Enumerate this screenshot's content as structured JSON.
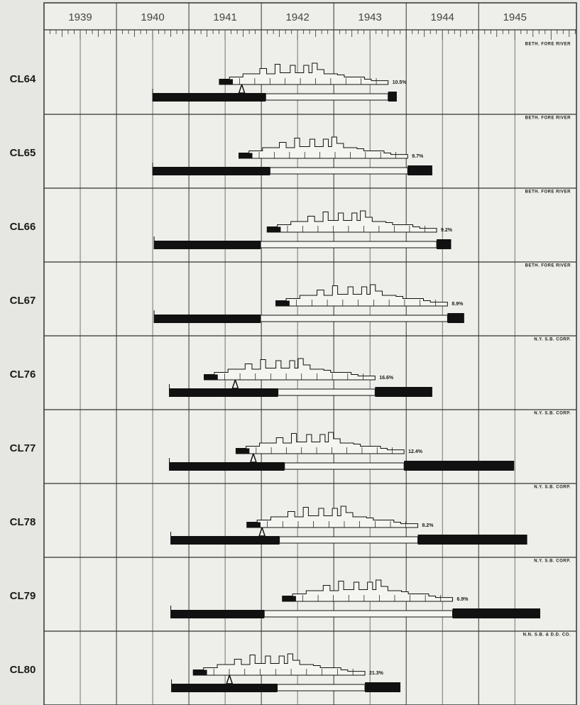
{
  "chart_data": {
    "type": "timeline",
    "xlim": [
      1939,
      1946.35
    ],
    "xticks": [
      1939,
      1940,
      1941,
      1942,
      1943,
      1944,
      1945
    ],
    "rows": [
      {
        "name": "CL64",
        "builder": "BETH. FORE RIVER",
        "label": "10.5%",
        "hull_start": 1941.42,
        "segments": [
          1940.5,
          1942.06,
          1943.75,
          1943.87
        ],
        "marker": 1941.73
      },
      {
        "name": "CL65",
        "builder": "BETH. FORE RIVER",
        "label": "9.7%",
        "hull_start": 1941.69,
        "segments": [
          1940.5,
          1942.12,
          1944.02,
          1944.36
        ]
      },
      {
        "name": "CL66",
        "builder": "BETH. FORE RIVER",
        "label": "9.2%",
        "hull_start": 1942.08,
        "segments": [
          1940.52,
          1941.99,
          1944.42,
          1944.62
        ]
      },
      {
        "name": "CL67",
        "builder": "BETH. FORE RIVER",
        "label": "8.9%",
        "hull_start": 1942.2,
        "segments": [
          1940.52,
          1941.99,
          1944.57,
          1944.8
        ]
      },
      {
        "name": "CL76",
        "builder": "N.Y. S.B. CORP.",
        "label": "16.6%",
        "hull_start": 1941.21,
        "segments": [
          1940.73,
          1942.23,
          1943.57,
          1944.36
        ],
        "marker": 1941.64
      },
      {
        "name": "CL77",
        "builder": "N.Y. S.B. CORP.",
        "label": "12.4%",
        "hull_start": 1941.65,
        "segments": [
          1940.73,
          1942.32,
          1943.97,
          1945.49
        ],
        "marker": 1941.89
      },
      {
        "name": "CL78",
        "builder": "N.Y. S.B. CORP.",
        "label": "8.2%",
        "hull_start": 1941.8,
        "segments": [
          1940.75,
          1942.25,
          1944.16,
          1945.67
        ],
        "marker": 1942.01
      },
      {
        "name": "CL79",
        "builder": "N.Y. S.B. CORP.",
        "label": "6.9%",
        "hull_start": 1942.29,
        "segments": [
          1940.75,
          1942.04,
          1944.64,
          1945.85
        ]
      },
      {
        "name": "CL80",
        "builder": "N.N. S.B. & D.D. CO.",
        "label": "21.3%",
        "hull_start": 1941.06,
        "segments": [
          1940.76,
          1942.22,
          1943.43,
          1943.92
        ],
        "marker": 1941.56
      }
    ]
  }
}
